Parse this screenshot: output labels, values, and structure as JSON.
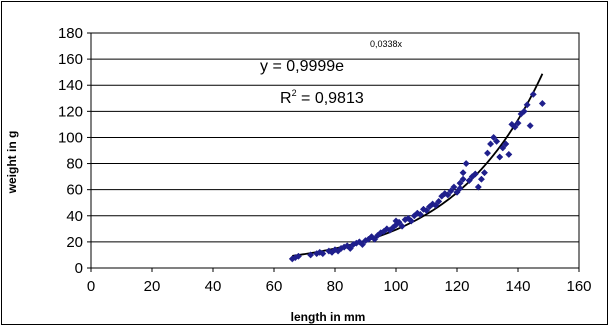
{
  "chart_data": {
    "type": "scatter",
    "title": "",
    "xlabel": "length in mm",
    "ylabel": "weight in g",
    "xlim": [
      0,
      160
    ],
    "ylim": [
      0,
      180
    ],
    "xticks": [
      0,
      20,
      40,
      60,
      80,
      100,
      120,
      140,
      160
    ],
    "yticks": [
      0,
      20,
      40,
      60,
      80,
      100,
      120,
      140,
      160,
      180
    ],
    "grid": "horizontal",
    "colors": {
      "points": "#1f1f8c",
      "trendline": "#000000"
    },
    "trendline": {
      "type": "exponential",
      "a": 0.9999,
      "b": 0.0338,
      "x_range": [
        66,
        148
      ],
      "equation_main": "y = 0,9999e",
      "equation_exponent": "0,0338x",
      "r2_prefix": "R",
      "r2_sup": "2",
      "r2_value": " = 0,9813"
    },
    "series": [
      {
        "points": [
          [
            66,
            7
          ],
          [
            67,
            8
          ],
          [
            68,
            9
          ],
          [
            72,
            10
          ],
          [
            74,
            11
          ],
          [
            75,
            12
          ],
          [
            76,
            11
          ],
          [
            78,
            13
          ],
          [
            79,
            12
          ],
          [
            80,
            14
          ],
          [
            81,
            13
          ],
          [
            82,
            15
          ],
          [
            83,
            16
          ],
          [
            84,
            17
          ],
          [
            85,
            15
          ],
          [
            86,
            18
          ],
          [
            87,
            19
          ],
          [
            88,
            20
          ],
          [
            89,
            18
          ],
          [
            90,
            21
          ],
          [
            91,
            22
          ],
          [
            92,
            24
          ],
          [
            93,
            22
          ],
          [
            94,
            25
          ],
          [
            95,
            27
          ],
          [
            96,
            28
          ],
          [
            97,
            30
          ],
          [
            98,
            29
          ],
          [
            99,
            31
          ],
          [
            100,
            33
          ],
          [
            100,
            36
          ],
          [
            101,
            35
          ],
          [
            102,
            32
          ],
          [
            103,
            37
          ],
          [
            104,
            38
          ],
          [
            105,
            36
          ],
          [
            106,
            40
          ],
          [
            107,
            42
          ],
          [
            108,
            41
          ],
          [
            109,
            45
          ],
          [
            110,
            44
          ],
          [
            111,
            47
          ],
          [
            112,
            49
          ],
          [
            113,
            48
          ],
          [
            114,
            51
          ],
          [
            115,
            55
          ],
          [
            116,
            57
          ],
          [
            117,
            56
          ],
          [
            118,
            59
          ],
          [
            119,
            62
          ],
          [
            120,
            58
          ],
          [
            121,
            65
          ],
          [
            121,
            61
          ],
          [
            122,
            68
          ],
          [
            122,
            73
          ],
          [
            123,
            80
          ],
          [
            124,
            67
          ],
          [
            125,
            70
          ],
          [
            126,
            72
          ],
          [
            127,
            62
          ],
          [
            128,
            68
          ],
          [
            129,
            73
          ],
          [
            130,
            88
          ],
          [
            131,
            95
          ],
          [
            132,
            100
          ],
          [
            133,
            97
          ],
          [
            134,
            85
          ],
          [
            135,
            92
          ],
          [
            136,
            95
          ],
          [
            137,
            87
          ],
          [
            138,
            110
          ],
          [
            139,
            108
          ],
          [
            140,
            111
          ],
          [
            141,
            118
          ],
          [
            142,
            120
          ],
          [
            143,
            125
          ],
          [
            144,
            109
          ],
          [
            145,
            133
          ],
          [
            148,
            126
          ]
        ]
      }
    ]
  }
}
